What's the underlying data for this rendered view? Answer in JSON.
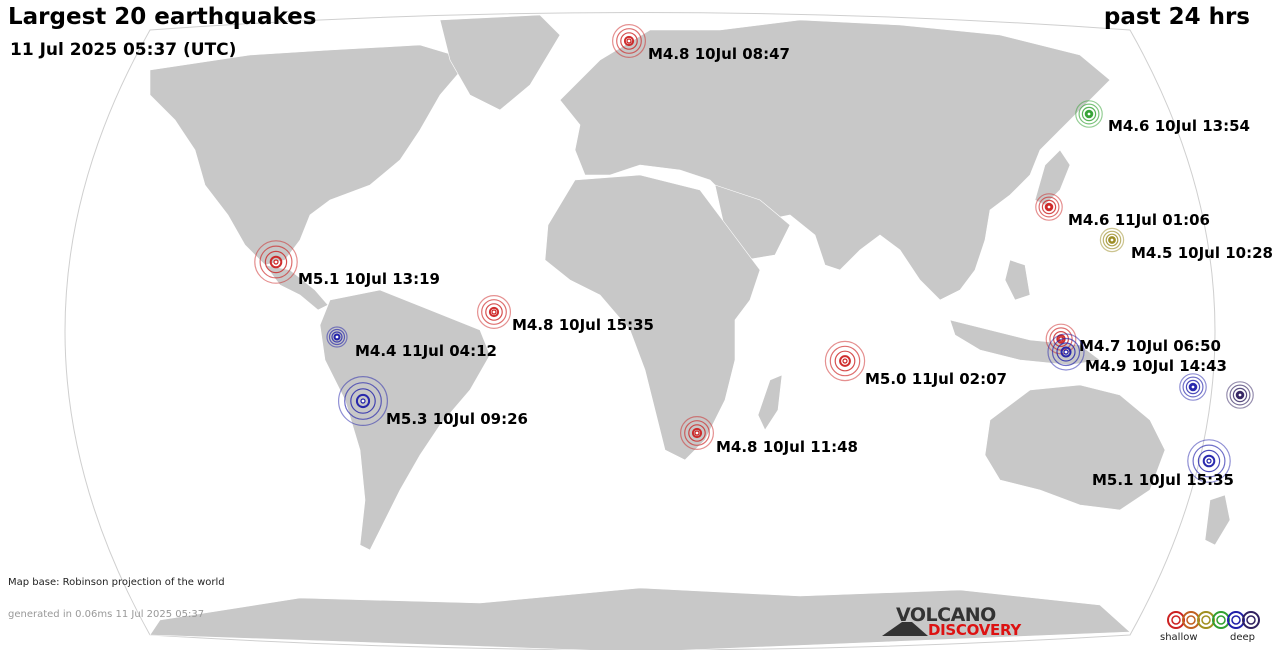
{
  "header": {
    "title": "Largest 20 earthquakes",
    "subtitle": "11 Jul 2025 05:37 (UTC)",
    "period": "past 24 hrs"
  },
  "footer": {
    "map_base": "Map base: Robinson projection of the world",
    "generated": "generated in 0.06ms 11 Jul 2025 05:37"
  },
  "logo": {
    "line1": "VOLCANO",
    "line2": "DISCOVERY"
  },
  "legend": {
    "shallow_label": "shallow",
    "deep_label": "deep",
    "colors": [
      "#cc2222",
      "#c06020",
      "#a09020",
      "#30a030",
      "#2020aa",
      "#302060"
    ]
  },
  "colors": {
    "land": "#c8c8c8",
    "ocean": "#ffffff",
    "outline": "#cfcfcf",
    "borders": "#ffffff"
  },
  "quakes": [
    {
      "label": "M4.8 10Jul 08:47",
      "depth_color": "#cc2222",
      "magnitude": 4.8
    },
    {
      "label": "M4.6 10Jul 13:54",
      "depth_color": "#30a030",
      "magnitude": 4.6
    },
    {
      "label": "M4.6 11Jul 01:06",
      "depth_color": "#cc2222",
      "magnitude": 4.6
    },
    {
      "label": "M4.5 10Jul 10:28",
      "depth_color": "#9a8a20",
      "magnitude": 4.5
    },
    {
      "label": "M5.1 10Jul 13:19",
      "depth_color": "#cc2222",
      "magnitude": 5.1
    },
    {
      "label": "M4.8 10Jul 15:35",
      "depth_color": "#cc2222",
      "magnitude": 4.8
    },
    {
      "label": "M4.4 11Jul 04:12",
      "depth_color": "#2020aa",
      "magnitude": 4.4
    },
    {
      "label": "M5.3 10Jul 09:26",
      "depth_color": "#2020aa",
      "magnitude": 5.3
    },
    {
      "label": "M5.0 11Jul 02:07",
      "depth_color": "#cc2222",
      "magnitude": 5.0
    },
    {
      "label": "M4.7 10Jul 06:50",
      "depth_color": "#cc2222",
      "magnitude": 4.7
    },
    {
      "label": "M4.9 10Jul 14:43",
      "depth_color": "#2020aa",
      "magnitude": 4.9
    },
    {
      "label": "M4.8 10Jul 11:48",
      "depth_color": "#cc2222",
      "magnitude": 4.8
    },
    {
      "label": "",
      "depth_color": "#2020aa",
      "magnitude": 4.6
    },
    {
      "label": "",
      "depth_color": "#302060",
      "magnitude": 4.6
    },
    {
      "label": "M5.1 10Jul 15:35",
      "depth_color": "#2020aa",
      "magnitude": 5.1
    }
  ]
}
